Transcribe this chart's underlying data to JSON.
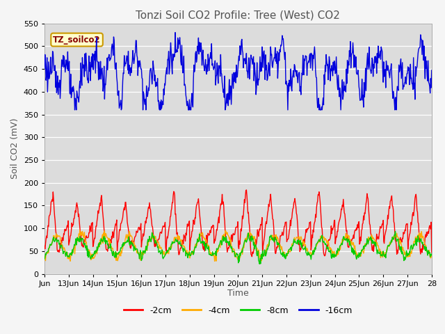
{
  "title": "Tonzi Soil CO2 Profile: Tree (West) CO2",
  "xlabel": "Time",
  "ylabel": "Soil CO2 (mV)",
  "ylim": [
    0,
    550
  ],
  "yticks": [
    0,
    50,
    100,
    150,
    200,
    250,
    300,
    350,
    400,
    450,
    500,
    550
  ],
  "xlim_start": 0,
  "xlim_end": 16,
  "xtick_labels": [
    "Jun",
    "13Jun",
    "14Jun",
    "15Jun",
    "16Jun",
    "17Jun",
    "18Jun",
    "19Jun",
    "20Jun",
    "21Jun",
    "22Jun",
    "23Jun",
    "24Jun",
    "25Jun",
    "26Jun",
    "27Jun",
    "28"
  ],
  "xtick_positions": [
    0,
    1,
    2,
    3,
    4,
    5,
    6,
    7,
    8,
    9,
    10,
    11,
    12,
    13,
    14,
    15,
    16
  ],
  "color_blue": "#0000dd",
  "color_red": "#ff0000",
  "color_orange": "#ffaa00",
  "color_green": "#00cc00",
  "legend_labels": [
    "-2cm",
    "-4cm",
    "-8cm",
    "-16cm"
  ],
  "legend_colors": [
    "#ff0000",
    "#ffaa00",
    "#00cc00",
    "#0000dd"
  ],
  "annotation_text": "TZ_soilco2",
  "plot_bg_color": "#dcdcdc",
  "fig_bg_color": "#f5f5f5",
  "linewidth": 1.0,
  "title_fontsize": 11,
  "label_fontsize": 9,
  "tick_fontsize": 8,
  "legend_fontsize": 9
}
